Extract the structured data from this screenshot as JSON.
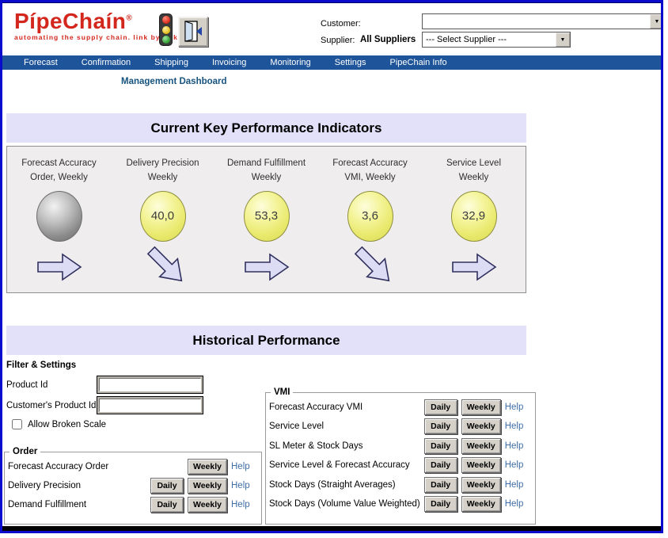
{
  "header": {
    "logo": {
      "brand": "PípeChaín",
      "reg": "®",
      "tagline": "automating the supply chain. link by link"
    },
    "customer_label": "Customer:",
    "customer_value": "",
    "supplier_label": "Supplier:",
    "supplier_static": "All Suppliers",
    "supplier_select_value": "--- Select Supplier ---"
  },
  "nav": {
    "items": [
      {
        "label": "Forecast"
      },
      {
        "label": "Confirmation"
      },
      {
        "label": "Shipping"
      },
      {
        "label": "Invoicing"
      },
      {
        "label": "Monitoring"
      },
      {
        "label": "Settings"
      },
      {
        "label": "PipeChain Info"
      }
    ]
  },
  "breadcrumb": {
    "label": "Management Dashboard"
  },
  "kpi_section": {
    "title": "Current Key Performance Indicators",
    "kpis": [
      {
        "label_line1": "Forecast Accuracy",
        "label_line2": "Order, Weekly",
        "value": "",
        "indicator": "gray",
        "trend": "flat"
      },
      {
        "label_line1": "Delivery Precision",
        "label_line2": "Weekly",
        "value": "40,0",
        "indicator": "yellow",
        "trend": "down"
      },
      {
        "label_line1": "Demand Fulfillment",
        "label_line2": "Weekly",
        "value": "53,3",
        "indicator": "yellow",
        "trend": "flat"
      },
      {
        "label_line1": "Forecast Accuracy",
        "label_line2": "VMI, Weekly",
        "value": "3,6",
        "indicator": "yellow",
        "trend": "down"
      },
      {
        "label_line1": "Service Level",
        "label_line2": "Weekly",
        "value": "32,9",
        "indicator": "yellow",
        "trend": "flat"
      }
    ]
  },
  "historical_section": {
    "title": "Historical Performance",
    "button_labels": {
      "daily": "Daily",
      "weekly": "Weekly",
      "help": "Help"
    },
    "filter": {
      "legend": "Filter & Settings",
      "product_id_label": "Product Id",
      "product_id_value": "",
      "customers_product_id_label": "Customer's Product Id",
      "customers_product_id_value": "",
      "allow_broken_scale_label": "Allow Broken Scale",
      "allow_broken_scale_checked": false
    },
    "order_group": {
      "legend": "Order",
      "rows": [
        {
          "label": "Forecast Accuracy Order",
          "daily": false,
          "weekly": true,
          "help": true
        },
        {
          "label": "Delivery Precision",
          "daily": true,
          "weekly": true,
          "help": true
        },
        {
          "label": "Demand Fulfillment",
          "daily": true,
          "weekly": true,
          "help": true
        }
      ]
    },
    "vmi_group": {
      "legend": "VMI",
      "rows": [
        {
          "label": "Forecast Accuracy VMI",
          "daily": true,
          "weekly": true,
          "help": true
        },
        {
          "label": "Service Level",
          "daily": true,
          "weekly": true,
          "help": true
        },
        {
          "label": "SL Meter & Stock Days",
          "daily": true,
          "weekly": true,
          "help": true
        },
        {
          "label": "Service Level & Forecast Accuracy",
          "daily": true,
          "weekly": true,
          "help": true
        },
        {
          "label": "Stock Days (Straight Averages)",
          "daily": true,
          "weekly": true,
          "help": true
        },
        {
          "label": "Stock Days (Volume Value Weighted)",
          "daily": true,
          "weekly": true,
          "help": true
        }
      ]
    }
  },
  "colors": {
    "border_blue": "#0b0bcd",
    "navbar_blue": "#1e5499",
    "section_lavender": "#e3e1f9",
    "kpi_panel_gray": "#f0edee",
    "logo_red": "#d3271d",
    "kpi_yellow": "#e9e96e",
    "kpi_gray": "#8a8a8a",
    "arrow_fill": "#dddcf5",
    "help_link_blue": "#3f6fa6",
    "breadcrumb_blue": "#17537f"
  }
}
